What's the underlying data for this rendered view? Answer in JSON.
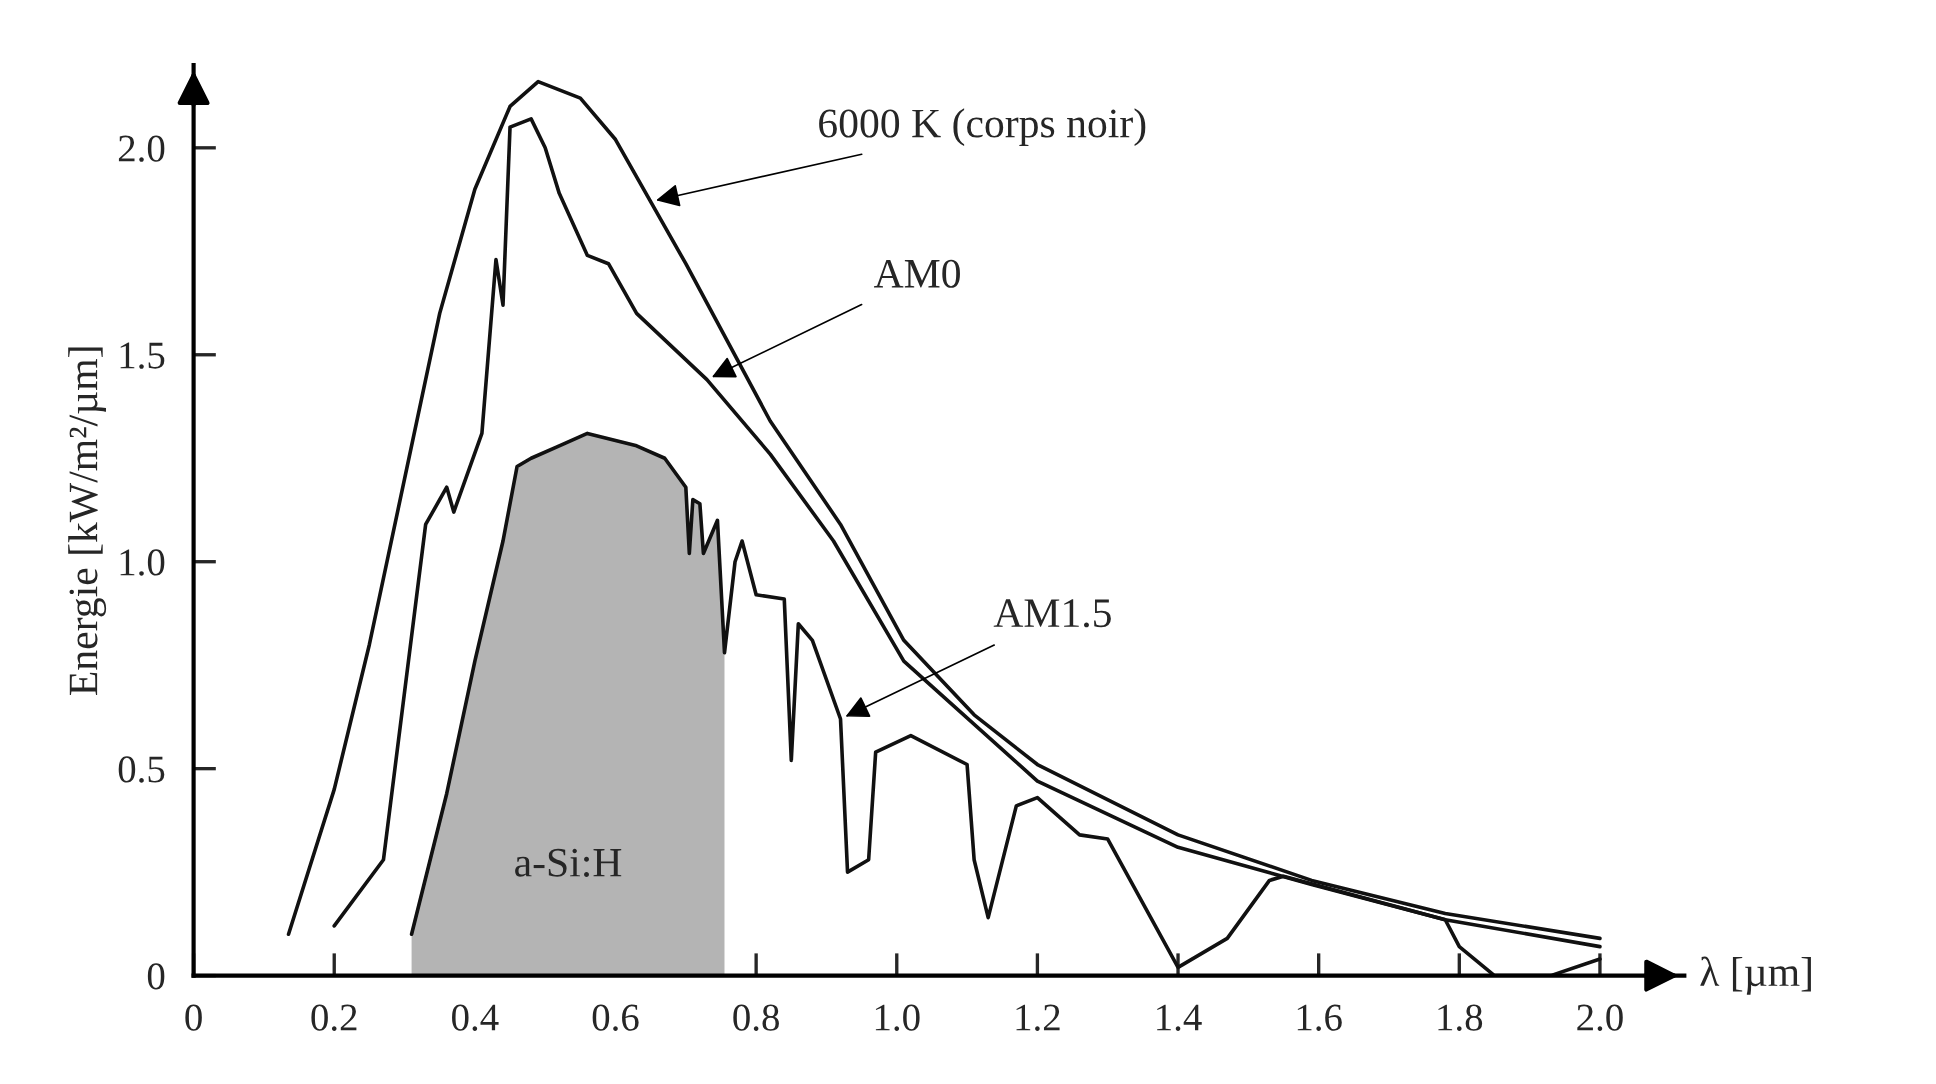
{
  "chart_data": {
    "type": "line",
    "xlabel": "λ [µm]",
    "ylabel": "Energie [kW/m²/µm]",
    "xlim": [
      0,
      2.12
    ],
    "ylim": [
      0,
      2.2
    ],
    "xticks": [
      0,
      0.2,
      0.4,
      0.6,
      0.8,
      {
        "value": 1.0,
        "label": "1.0"
      },
      1.2,
      1.4,
      1.6,
      1.8,
      {
        "value": 2.0,
        "label": "2.0"
      }
    ],
    "yticks": [
      0,
      0.5,
      {
        "value": 1.0,
        "label": "1.0"
      },
      1.5,
      {
        "value": 2.0,
        "label": "2.0"
      }
    ],
    "grid": false,
    "legend": false,
    "marker": "none",
    "line_style": "solid",
    "series": [
      {
        "type": "area",
        "name": "a-Si:H",
        "color": "#b4b4b4",
        "x": [
          0.31,
          0.36,
          0.4,
          0.44,
          0.46,
          0.48,
          0.52,
          0.56,
          0.63,
          0.67,
          0.7,
          0.705,
          0.71,
          0.72,
          0.725,
          0.745,
          0.755
        ],
        "values": [
          0.1,
          0.44,
          0.76,
          1.05,
          1.23,
          1.25,
          1.28,
          1.31,
          1.28,
          1.25,
          1.18,
          1.02,
          1.15,
          1.14,
          1.02,
          1.1,
          0.78
        ]
      },
      {
        "color": "#111111",
        "x": [
          0.135,
          0.2,
          0.25,
          0.3,
          0.35,
          0.4,
          0.45,
          0.49,
          0.55,
          0.6,
          0.7,
          0.82,
          0.92,
          1.01,
          1.11,
          1.2,
          1.4,
          1.59,
          1.78,
          2.0
        ],
        "values": [
          0.1,
          0.45,
          0.8,
          1.2,
          1.6,
          1.9,
          2.1,
          2.16,
          2.12,
          2.02,
          1.72,
          1.34,
          1.09,
          0.81,
          0.63,
          0.51,
          0.34,
          0.23,
          0.15,
          0.09
        ]
      },
      {
        "color": "#111111",
        "x": [
          0.2,
          0.27,
          0.33,
          0.36,
          0.37,
          0.41,
          0.43,
          0.44,
          0.45,
          0.48,
          0.5,
          0.52,
          0.56,
          0.59,
          0.63,
          0.73,
          0.82,
          0.91,
          1.01,
          1.2,
          1.4,
          1.59,
          1.78,
          2.0
        ],
        "values": [
          0.12,
          0.28,
          1.09,
          1.18,
          1.12,
          1.31,
          1.73,
          1.62,
          2.05,
          2.07,
          2.0,
          1.89,
          1.74,
          1.72,
          1.6,
          1.44,
          1.26,
          1.05,
          0.76,
          0.47,
          0.31,
          0.22,
          0.135,
          0.07
        ]
      },
      {
        "color": "#111111",
        "x": [
          0.31,
          0.36,
          0.4,
          0.44,
          0.46,
          0.48,
          0.52,
          0.56,
          0.63,
          0.67,
          0.7,
          0.705,
          0.71,
          0.72,
          0.725,
          0.745,
          0.755,
          0.77,
          0.78,
          0.8,
          0.84,
          0.85,
          0.86,
          0.88,
          0.92,
          0.93,
          0.96,
          0.97,
          1.02,
          1.1,
          1.11,
          1.13,
          1.17,
          1.2,
          1.26,
          1.3,
          1.4,
          1.47,
          1.53,
          1.55,
          1.78,
          1.8,
          1.85,
          1.93,
          2.0
        ],
        "values": [
          0.1,
          0.44,
          0.76,
          1.05,
          1.23,
          1.25,
          1.28,
          1.31,
          1.28,
          1.25,
          1.18,
          1.02,
          1.15,
          1.14,
          1.02,
          1.1,
          0.78,
          1.0,
          1.05,
          0.92,
          0.91,
          0.52,
          0.85,
          0.81,
          0.62,
          0.25,
          0.28,
          0.54,
          0.58,
          0.51,
          0.28,
          0.14,
          0.41,
          0.43,
          0.34,
          0.33,
          0.02,
          0.09,
          0.23,
          0.24,
          0.135,
          0.07,
          0.0,
          0.0,
          0.04
        ]
      }
    ],
    "annotations": [
      {
        "text": "6000 K (corps noir)",
        "x": 0.65,
        "y": 1.87
      },
      {
        "text": "AM0",
        "x": 0.73,
        "y": 1.44
      },
      {
        "text": "AM1.5",
        "x": 0.92,
        "y": 0.62
      }
    ]
  }
}
